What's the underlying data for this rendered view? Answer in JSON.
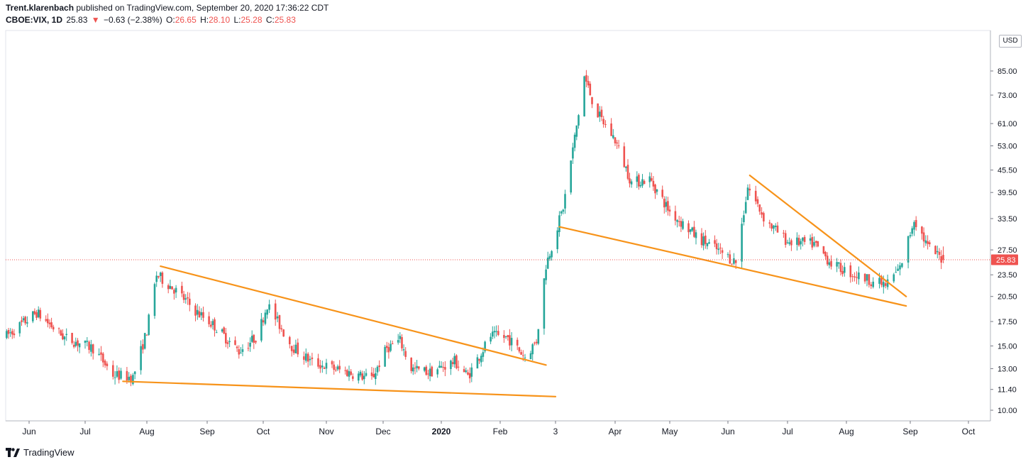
{
  "header": {
    "author": "Trent.klarenbach",
    "published_text": " published on TradingView.com, September 20, 2020 17:36:22 CDT",
    "symbol": "CBOE:VIX, 1D",
    "last": "25.83",
    "change_arrow": "▼",
    "change": "−0.63 (−2.38%)",
    "o_label": "O:",
    "o_value": "26.65",
    "h_label": "H:",
    "h_value": "28.10",
    "l_label": "L:",
    "l_value": "25.28",
    "c_label": "C:",
    "c_value": "25.83"
  },
  "currency_label": "USD",
  "footer": {
    "brand": "TradingView"
  },
  "colors": {
    "up": "#26a69a",
    "down": "#ef5350",
    "trendline": "#f7931a",
    "price_tag": "#ef5350"
  },
  "chart_data": {
    "type": "candlestick",
    "title": "CBOE:VIX, 1D",
    "y_scale": "log",
    "ylim": [
      9.0,
      100.0
    ],
    "y_ticks": [
      10.0,
      11.4,
      13.0,
      15.0,
      17.5,
      20.5,
      23.5,
      27.5,
      33.5,
      39.5,
      45.5,
      53.0,
      61.0,
      73.0,
      85.0
    ],
    "y_tick_labels": [
      "10.00",
      "11.40",
      "13.00",
      "15.00",
      "17.50",
      "20.50",
      "23.50",
      "27.50",
      "33.50",
      "39.50",
      "45.50",
      "53.00",
      "61.00",
      "73.00",
      "85.00"
    ],
    "x_ticks": [
      {
        "label": "Jun",
        "date": "2019-06-01"
      },
      {
        "label": "Jul",
        "date": "2019-07-01"
      },
      {
        "label": "Aug",
        "date": "2019-08-01"
      },
      {
        "label": "Sep",
        "date": "2019-09-01"
      },
      {
        "label": "Oct",
        "date": "2019-10-01"
      },
      {
        "label": "Nov",
        "date": "2019-11-01"
      },
      {
        "label": "Dec",
        "date": "2019-12-01"
      },
      {
        "label": "2020",
        "date": "2020-01-01"
      },
      {
        "label": "Feb",
        "date": "2020-02-01"
      },
      {
        "label": "3",
        "date": "2020-03-01"
      },
      {
        "label": "Apr",
        "date": "2020-04-01"
      },
      {
        "label": "May",
        "date": "2020-05-01"
      },
      {
        "label": "Jun",
        "date": "2020-06-01"
      },
      {
        "label": "Jul",
        "date": "2020-07-01"
      },
      {
        "label": "Aug",
        "date": "2020-08-01"
      },
      {
        "label": "Sep",
        "date": "2020-09-01"
      },
      {
        "label": "Oct",
        "date": "2020-10-01"
      }
    ],
    "current_price": 25.83,
    "last_bar": {
      "open": 26.65,
      "high": 28.1,
      "low": 25.28,
      "close": 25.83
    },
    "path_anchors": [
      [
        "2019-05-20",
        16.0
      ],
      [
        "2019-06-05",
        18.5
      ],
      [
        "2019-06-20",
        15.8
      ],
      [
        "2019-07-05",
        14.8
      ],
      [
        "2019-07-15",
        12.5
      ],
      [
        "2019-07-25",
        12.3
      ],
      [
        "2019-08-01",
        16.5
      ],
      [
        "2019-08-06",
        23.5
      ],
      [
        "2019-08-15",
        21.5
      ],
      [
        "2019-08-27",
        18.5
      ],
      [
        "2019-09-05",
        17.0
      ],
      [
        "2019-09-18",
        14.5
      ],
      [
        "2019-09-28",
        16.0
      ],
      [
        "2019-10-03",
        19.5
      ],
      [
        "2019-10-15",
        15.0
      ],
      [
        "2019-10-25",
        13.5
      ],
      [
        "2019-11-10",
        12.8
      ],
      [
        "2019-11-25",
        12.2
      ],
      [
        "2019-12-03",
        14.8
      ],
      [
        "2019-12-10",
        15.5
      ],
      [
        "2019-12-16",
        13.0
      ],
      [
        "2019-12-26",
        12.7
      ],
      [
        "2020-01-08",
        13.6
      ],
      [
        "2020-01-15",
        12.4
      ],
      [
        "2020-01-27",
        16.0
      ],
      [
        "2020-02-05",
        15.8
      ],
      [
        "2020-02-14",
        14.0
      ],
      [
        "2020-02-20",
        15.5
      ],
      [
        "2020-02-25",
        25.0
      ],
      [
        "2020-03-05",
        36.0
      ],
      [
        "2020-03-12",
        60.0
      ],
      [
        "2020-03-16",
        82.0
      ],
      [
        "2020-03-22",
        66.0
      ],
      [
        "2020-04-01",
        55.0
      ],
      [
        "2020-04-10",
        42.0
      ],
      [
        "2020-04-20",
        43.0
      ],
      [
        "2020-05-01",
        35.0
      ],
      [
        "2020-05-15",
        30.0
      ],
      [
        "2020-06-05",
        25.5
      ],
      [
        "2020-06-11",
        41.0
      ],
      [
        "2020-06-20",
        33.0
      ],
      [
        "2020-07-01",
        29.0
      ],
      [
        "2020-07-15",
        28.5
      ],
      [
        "2020-07-25",
        25.0
      ],
      [
        "2020-08-05",
        23.5
      ],
      [
        "2020-08-20",
        22.0
      ],
      [
        "2020-08-27",
        24.5
      ],
      [
        "2020-09-03",
        33.5
      ],
      [
        "2020-09-10",
        28.0
      ],
      [
        "2020-09-18",
        25.83
      ]
    ],
    "trendlines": [
      {
        "from": [
          "2019-08-08",
          24.8
        ],
        "to": [
          "2020-02-25",
          13.3
        ]
      },
      {
        "from": [
          "2019-07-20",
          12.0
        ],
        "to": [
          "2020-03-01",
          10.9
        ]
      },
      {
        "from": [
          "2020-03-03",
          31.8
        ],
        "to": [
          "2020-08-30",
          19.3
        ]
      },
      {
        "from": [
          "2020-06-12",
          44.0
        ],
        "to": [
          "2020-08-30",
          20.5
        ]
      }
    ]
  }
}
